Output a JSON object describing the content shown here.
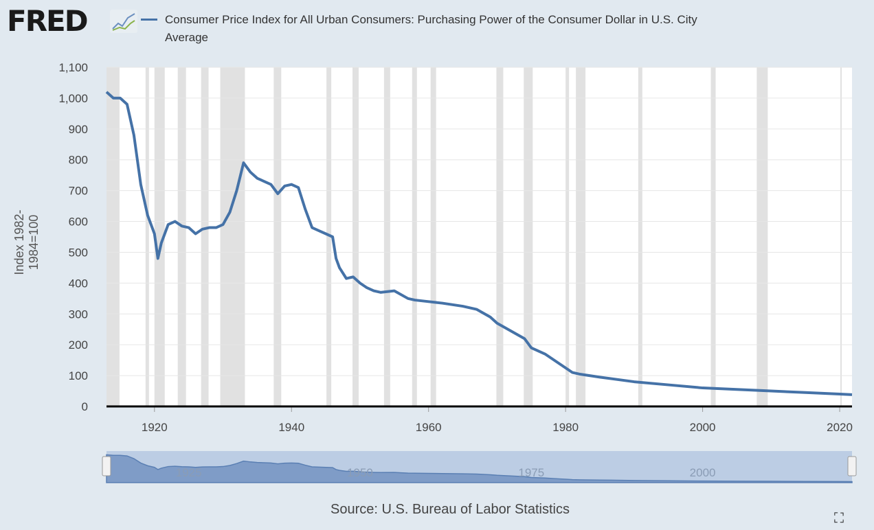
{
  "header": {
    "logo": "FRED",
    "title": "Consumer Price Index for All Urban Consumers: Purchasing Power of the Consumer Dollar in U.S. City Average"
  },
  "footer": {
    "source": "Source: U.S. Bureau of Labor Statistics",
    "fullscreen_icon": "fullscreen-icon"
  },
  "colors": {
    "series": "#4572a7",
    "recession": "#e1e1e1",
    "background": "#e1e9f0"
  },
  "chart_data": {
    "type": "line",
    "title": "Consumer Price Index for All Urban Consumers: Purchasing Power of the Consumer Dollar in U.S. City Average",
    "ylabel": "Index 1982-1984=100",
    "xlim": [
      1913,
      2021.8
    ],
    "ylim": [
      0,
      1100
    ],
    "yticks": [
      "0",
      "100",
      "200",
      "300",
      "400",
      "500",
      "600",
      "700",
      "800",
      "900",
      "1,000",
      "1,100"
    ],
    "xticks": [
      "1920",
      "1940",
      "1960",
      "1980",
      "2000",
      "2020"
    ],
    "navigator_ticks": [
      "1925",
      "1950",
      "1975",
      "2000"
    ],
    "grid": true,
    "recessions": [
      [
        1913.0,
        1914.9
      ],
      [
        1918.7,
        1919.2
      ],
      [
        1920.0,
        1921.5
      ],
      [
        1923.4,
        1924.6
      ],
      [
        1926.8,
        1927.9
      ],
      [
        1929.6,
        1933.2
      ],
      [
        1937.4,
        1938.5
      ],
      [
        1945.1,
        1945.8
      ],
      [
        1948.9,
        1949.8
      ],
      [
        1953.5,
        1954.4
      ],
      [
        1957.6,
        1958.3
      ],
      [
        1960.3,
        1961.1
      ],
      [
        1969.9,
        1970.9
      ],
      [
        1973.9,
        1975.2
      ],
      [
        1980.0,
        1980.5
      ],
      [
        1981.5,
        1982.9
      ],
      [
        1990.6,
        1991.2
      ],
      [
        2001.2,
        2001.9
      ],
      [
        2007.9,
        2009.5
      ],
      [
        2020.1,
        2020.3
      ]
    ],
    "series": [
      {
        "x": [
          1913,
          1914,
          1915,
          1916,
          1917,
          1918,
          1919,
          1920,
          1920.5,
          1921,
          1922,
          1923,
          1924,
          1925,
          1926,
          1927,
          1928,
          1929,
          1930,
          1931,
          1932,
          1933,
          1934,
          1935,
          1936,
          1937,
          1938,
          1939,
          1940,
          1941,
          1942,
          1943,
          1944,
          1945,
          1946,
          1946.5,
          1947,
          1948,
          1949,
          1950,
          1951,
          1952,
          1953,
          1955,
          1957,
          1958,
          1960,
          1962,
          1965,
          1967,
          1969,
          1970,
          1972,
          1974,
          1975,
          1977,
          1979,
          1980,
          1981,
          1982,
          1985,
          1990,
          1995,
          2000,
          2005,
          2010,
          2015,
          2020,
          2021.8
        ],
        "values": [
          1020,
          1000,
          1000,
          980,
          880,
          720,
          620,
          560,
          480,
          530,
          590,
          600,
          585,
          580,
          560,
          575,
          580,
          580,
          590,
          630,
          700,
          790,
          760,
          740,
          730,
          720,
          690,
          715,
          720,
          710,
          640,
          580,
          570,
          560,
          550,
          480,
          450,
          415,
          420,
          400,
          385,
          375,
          370,
          375,
          350,
          345,
          340,
          335,
          325,
          315,
          290,
          270,
          245,
          220,
          190,
          170,
          140,
          125,
          110,
          105,
          95,
          80,
          70,
          60,
          55,
          50,
          45,
          40,
          38
        ]
      }
    ]
  }
}
